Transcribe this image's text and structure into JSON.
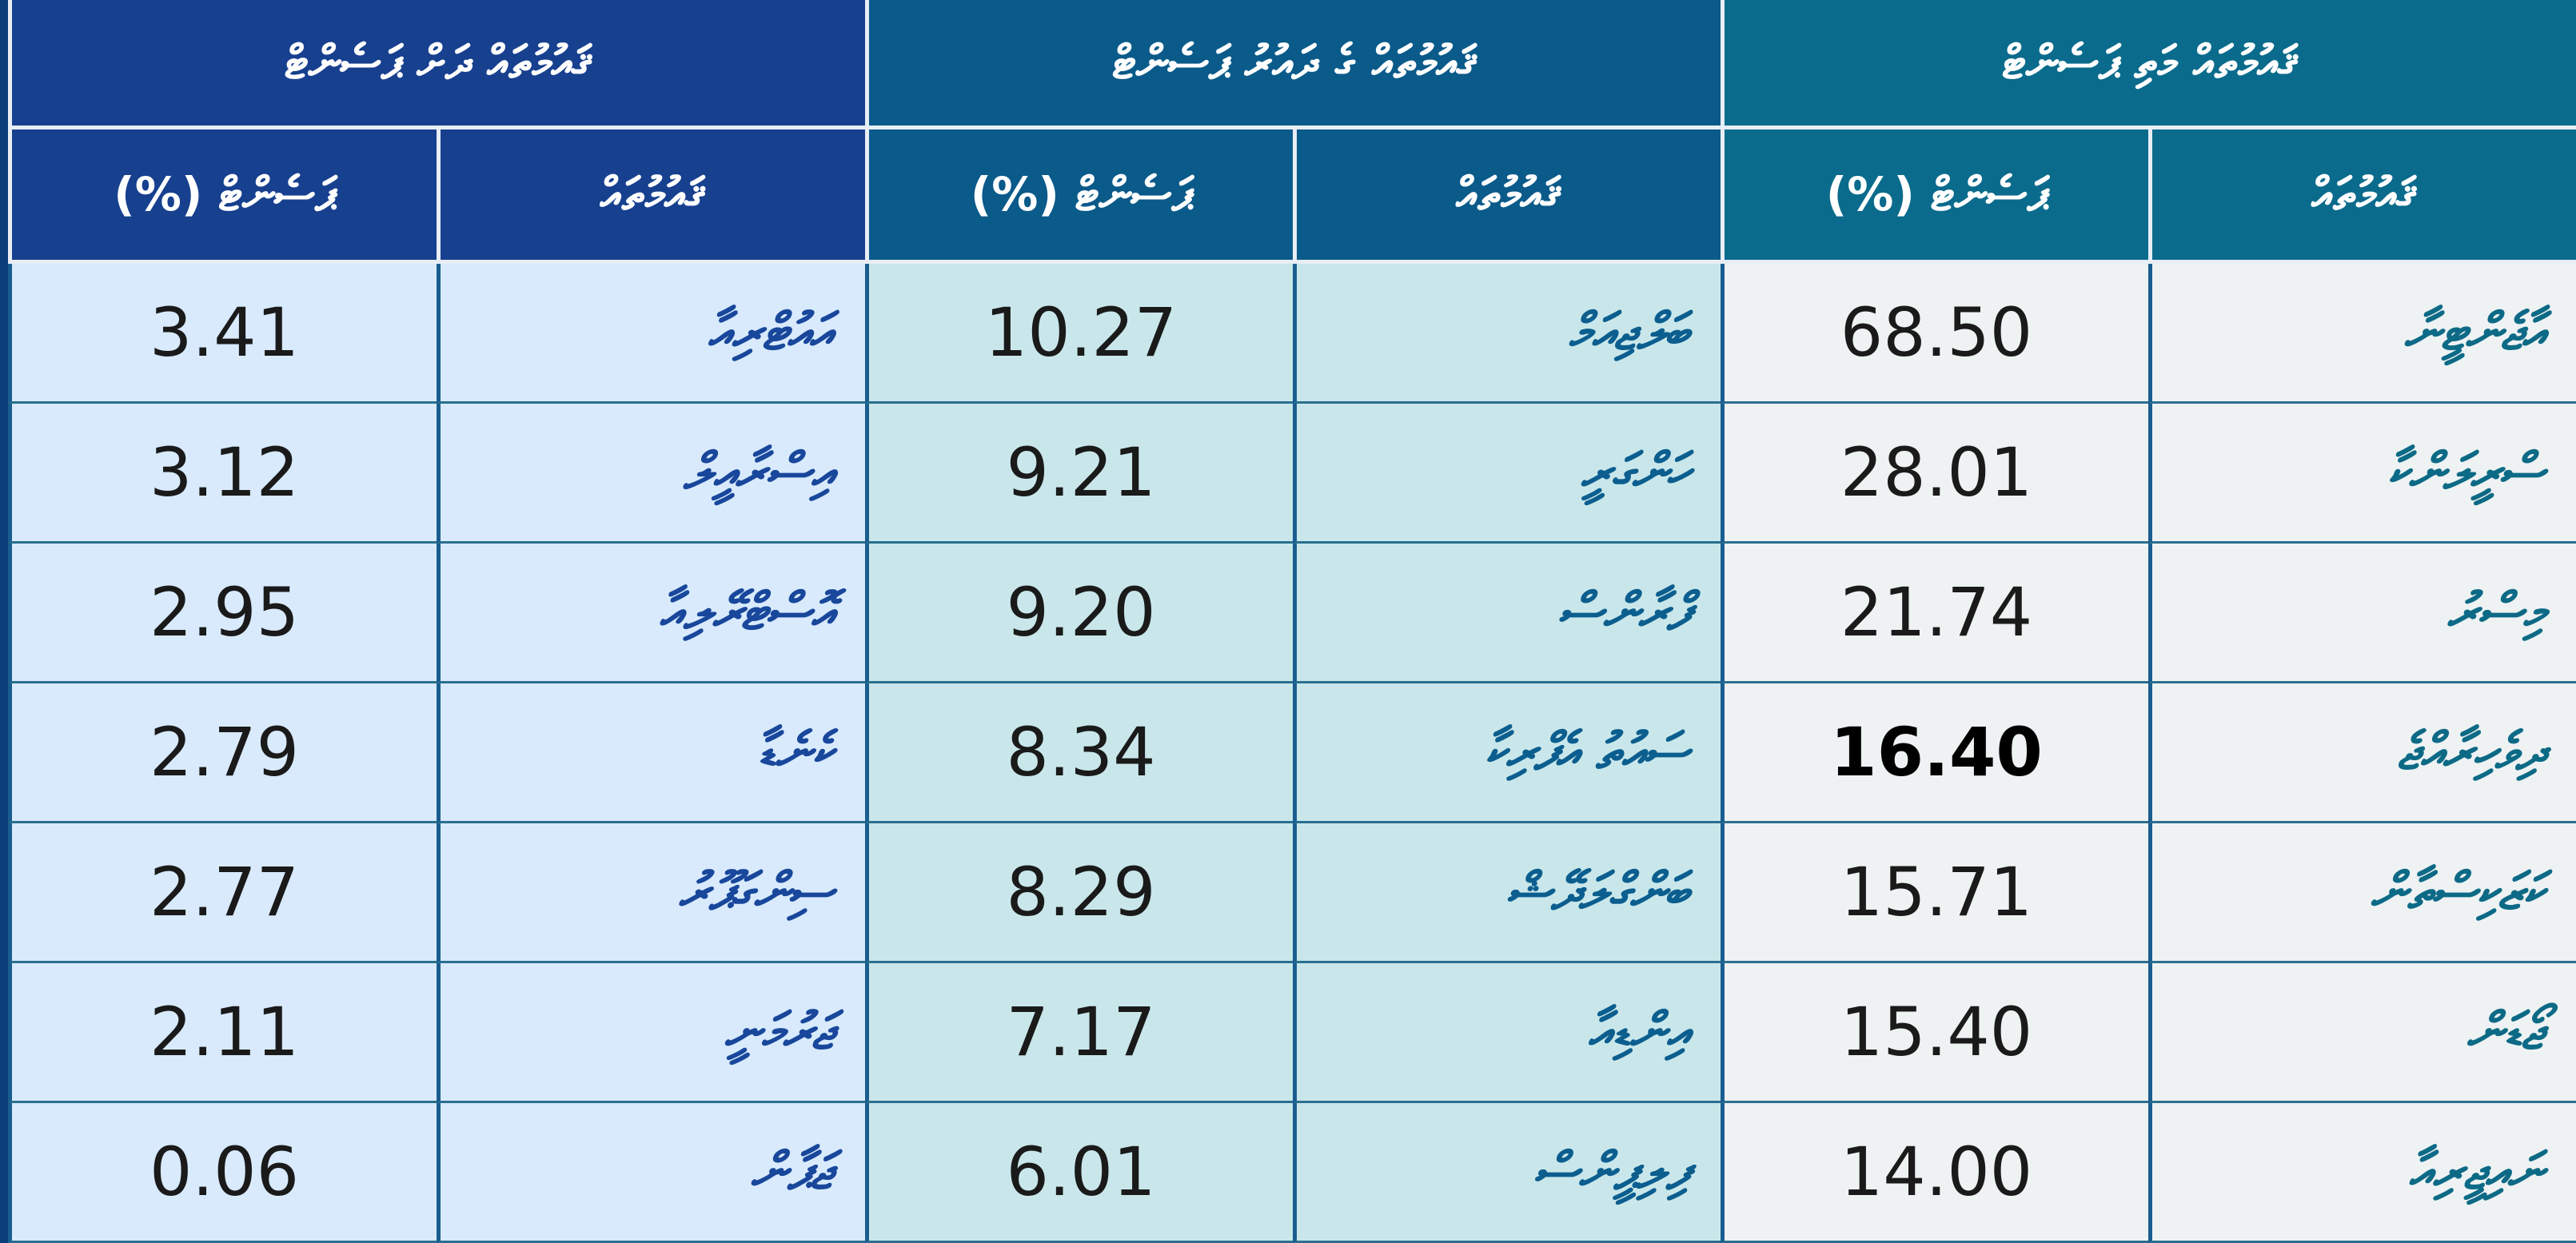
{
  "groups": [
    {
      "title": "ޤައުމުތައް ދަށް ޕަސެންޓް",
      "sub_country": "ޤައުމުތައް",
      "sub_percent": "ޕަސެންޓް (%)"
    },
    {
      "title": "ޤައުމުތައް ގެ ދައުރު ޕަސެންޓް",
      "sub_country": "ޤައުމުތައް",
      "sub_percent": "ޕަސެންޓް (%)"
    },
    {
      "title": "ޤައުމުތައް މަތި ޕަސެންޓް",
      "sub_country": "ޤައުމުތައް",
      "sub_percent": "ޕަސެންޓް (%)"
    }
  ],
  "rows": [
    [
      {
        "name": "އާޖެންޓީނާ",
        "value": "68.50"
      },
      {
        "name": "ބަލްޖިއަމް",
        "value": "10.27"
      },
      {
        "name": "އައުޓްރިއާ",
        "value": "3.41"
      }
    ],
    [
      {
        "name": "ސްރީލަންކާ",
        "value": "28.01"
      },
      {
        "name": "ހަންގަރީ",
        "value": "9.21"
      },
      {
        "name": "އިސްރާއީލް",
        "value": "3.12"
      }
    ],
    [
      {
        "name": "މިސްރު",
        "value": "21.74"
      },
      {
        "name": "ފްރާންސް",
        "value": "9.20"
      },
      {
        "name": "އޮސްޓްރޭލިއާ",
        "value": "2.95"
      }
    ],
    [
      {
        "name": "ދިވެހިރާއްޖެ",
        "value": "16.40"
      },
      {
        "name": "ސައުތު އެފްރިކާ",
        "value": "8.34"
      },
      {
        "name": "ކެނެޑާ",
        "value": "2.79"
      }
    ],
    [
      {
        "name": "ކަޒަކިސްތާން",
        "value": "15.71"
      },
      {
        "name": "ބަންގްލަދޭޝް",
        "value": "8.29"
      },
      {
        "name": "ސިންގަޕޫރު",
        "value": "2.77"
      }
    ],
    [
      {
        "name": "ޖޯޑަން",
        "value": "15.40"
      },
      {
        "name": "އިންޑިއާ",
        "value": "7.17"
      },
      {
        "name": "ޖަރުމަނީ",
        "value": "2.11"
      }
    ],
    [
      {
        "name": "ނައިޖީރިއާ",
        "value": "14.00"
      },
      {
        "name": "ފިލިޕީންސް",
        "value": "6.01"
      },
      {
        "name": "ޖަޕާން",
        "value": "0.06"
      }
    ]
  ],
  "colors": {
    "group_right_header": "#0b6b8c",
    "group_middle_header": "#0a5a8a",
    "group_left_header": "#17408f",
    "group_right_body": "#eef2f3",
    "group_middle_body": "#c9e7ea",
    "group_left_body": "#d8eafc"
  },
  "highlighted_value": "16.40"
}
